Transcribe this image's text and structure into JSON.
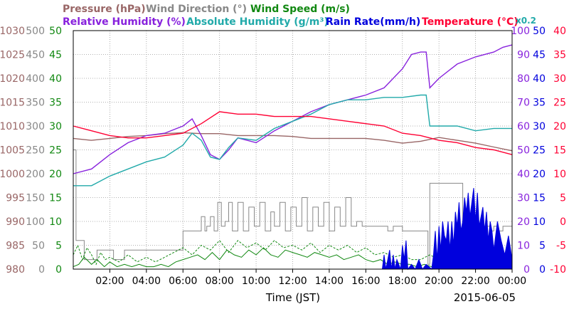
{
  "colors": {
    "pressure": "#996666",
    "wind_direction": "#888888",
    "wind_speed": "#118811",
    "relative_humidity": "#8822dd",
    "absolute_humidity": "#22aaaa",
    "rain_rate": "#0000dd",
    "temperature": "#ff0033",
    "grid": "#999999"
  },
  "chart_data": {
    "type": "line",
    "xlabel": "Time (JST)",
    "date": "2015-06-05",
    "x_ticks": [
      "02:00",
      "04:00",
      "06:00",
      "08:00",
      "10:00",
      "12:00",
      "14:00",
      "16:00",
      "18:00",
      "20:00",
      "22:00",
      "00:00"
    ],
    "x_range_hours": [
      0,
      24
    ],
    "axes": [
      {
        "id": "pressure",
        "label": "Pressure (hPa)",
        "range": [
          980,
          1030
        ],
        "ticks": [
          "1030",
          "1025",
          "1020",
          "1015",
          "1010",
          "1005",
          "1000",
          "995",
          "990",
          "985",
          "980"
        ]
      },
      {
        "id": "wind_direction",
        "label": "Wind Direction (°)",
        "range": [
          0,
          500
        ],
        "ticks": [
          "500",
          "450",
          "400",
          "350",
          "300",
          "250",
          "200",
          "150",
          "100",
          "50",
          "0"
        ]
      },
      {
        "id": "wind_speed",
        "label": "Wind Speed (m/s)",
        "range": [
          0,
          50
        ],
        "ticks": [
          "50",
          "45",
          "40",
          "35",
          "30",
          "25",
          "20",
          "15",
          "10",
          "5",
          "0"
        ]
      },
      {
        "id": "relative_humidity",
        "label": "Relative Humidity (%)",
        "range": [
          0,
          100
        ],
        "ticks": [
          "100",
          "90",
          "80",
          "70",
          "60",
          "50",
          "40",
          "30",
          "20",
          "10",
          "0"
        ]
      },
      {
        "id": "absolute_humidity",
        "label": "Absolute Humidity (g/m³)",
        "scale_note": "x0.2",
        "range": [
          0,
          50
        ]
      },
      {
        "id": "rain_rate",
        "label": "Rain Rate(mm/h)",
        "range": [
          0,
          50
        ],
        "ticks": [
          "50",
          "45",
          "40",
          "35",
          "30",
          "25",
          "20",
          "15",
          "10",
          "5",
          "0"
        ]
      },
      {
        "id": "temperature",
        "label": "Temperature (°C)",
        "range": [
          -10,
          40
        ],
        "ticks": [
          "40",
          "35",
          "30",
          "25",
          "20",
          "15",
          "10",
          "5",
          "0",
          "-5",
          "-10"
        ]
      }
    ],
    "series": [
      {
        "name": "Pressure (hPa)",
        "axis": "pressure",
        "x": [
          0,
          1,
          2,
          3,
          4,
          5,
          6,
          7,
          8,
          9,
          10,
          11,
          12,
          13,
          14,
          15,
          16,
          17,
          18,
          19,
          20,
          21,
          22,
          23,
          24
        ],
        "y": [
          1007.4,
          1007.0,
          1007.4,
          1007.8,
          1008.0,
          1008.4,
          1008.6,
          1008.4,
          1008.4,
          1008.0,
          1008.0,
          1008.0,
          1007.8,
          1007.4,
          1007.4,
          1007.4,
          1007.4,
          1007.0,
          1006.4,
          1006.8,
          1007.6,
          1007.0,
          1006.4,
          1005.6,
          1004.8
        ]
      },
      {
        "name": "Wind Direction (°)",
        "axis": "wind_direction",
        "x": [
          0,
          0.1,
          0.15,
          0.6,
          1.3,
          2.2,
          2.8,
          4,
          5,
          5.9,
          6.0,
          6.8,
          7.0,
          7.2,
          7.3,
          7.5,
          7.7,
          7.9,
          8.1,
          8.3,
          8.5,
          8.7,
          9.0,
          9.3,
          9.6,
          9.9,
          10.2,
          10.5,
          10.8,
          11.0,
          11.3,
          11.6,
          11.9,
          12.2,
          12.5,
          12.8,
          13.1,
          13.4,
          13.7,
          14.0,
          14.3,
          14.6,
          14.9,
          15.2,
          15.5,
          15.8,
          16.1,
          16.4,
          16.7,
          17.0,
          17.2,
          17.5,
          18.0,
          18.5,
          18.8,
          19.0,
          19.4,
          19.5,
          20.0,
          20.5,
          21.0,
          21.3,
          21.5,
          22.0,
          22.5,
          22.8,
          23.0,
          23.2,
          23.5,
          24.0
        ],
        "y": [
          250,
          250,
          60,
          20,
          40,
          20,
          40,
          40,
          40,
          40,
          80,
          80,
          110,
          80,
          90,
          110,
          80,
          140,
          90,
          100,
          140,
          80,
          140,
          80,
          130,
          90,
          140,
          80,
          120,
          90,
          140,
          80,
          130,
          90,
          150,
          80,
          130,
          90,
          140,
          80,
          130,
          90,
          150,
          90,
          100,
          90,
          90,
          90,
          90,
          90,
          80,
          90,
          80,
          80,
          80,
          80,
          10,
          180,
          180,
          180,
          180,
          100,
          80,
          90,
          90,
          80,
          90,
          80,
          90,
          90
        ]
      },
      {
        "name": "Wind Speed (m/s)",
        "axis": "wind_speed",
        "x": [
          0,
          0.3,
          0.6,
          1.0,
          1.3,
          1.7,
          2.0,
          2.4,
          2.8,
          3.2,
          3.6,
          4.0,
          4.4,
          4.8,
          5.2,
          5.6,
          6.0,
          6.4,
          6.8,
          7.2,
          7.6,
          8.0,
          8.4,
          8.8,
          9.2,
          9.6,
          10.0,
          10.4,
          10.8,
          11.2,
          11.6,
          12.0,
          12.4,
          12.8,
          13.2,
          13.6,
          14.0,
          14.4,
          14.8,
          15.2,
          15.6,
          16.0,
          16.4,
          16.8,
          17.2,
          17.6,
          18.0,
          18.4,
          18.8,
          19.2,
          19.6,
          20.0,
          20.5,
          21.0,
          21.5,
          22.0,
          22.5,
          23.0,
          23.5,
          24.0
        ],
        "y": [
          0.5,
          1.0,
          2.5,
          1.0,
          2.0,
          0.5,
          1.5,
          0.5,
          1.0,
          0.5,
          1.0,
          0.5,
          0.5,
          1.0,
          0.5,
          1.5,
          2.0,
          2.5,
          3.0,
          2.0,
          3.5,
          2.0,
          4.0,
          3.0,
          2.5,
          4.0,
          3.0,
          4.5,
          3.0,
          2.5,
          4.0,
          3.5,
          3.0,
          2.5,
          3.5,
          3.0,
          2.5,
          3.0,
          2.0,
          2.5,
          3.0,
          2.0,
          1.5,
          2.0,
          1.0,
          1.5,
          1.0,
          1.0,
          0.5,
          1.0,
          0.5,
          1.0,
          0.5,
          1.0,
          0.5,
          1.0,
          1.5,
          1.0,
          1.5,
          1.0
        ]
      },
      {
        "name": "Wind Speed (m/s)",
        "axis": "wind_speed",
        "style": "dashed",
        "x": [
          0,
          0.25,
          0.5,
          0.75,
          1.0,
          1.25,
          1.5,
          1.75,
          2.0,
          2.5,
          3.0,
          3.5,
          4.0,
          4.5,
          5.0,
          5.5,
          6.0,
          6.5,
          7.0,
          7.5,
          8.0,
          8.5,
          9.0,
          9.5,
          10.0,
          10.5,
          11.0,
          11.5,
          12.0,
          12.5,
          13.0,
          13.5,
          14.0,
          14.5,
          15.0,
          15.5,
          16.0,
          16.5,
          17.0,
          17.5,
          18.0,
          18.5,
          19.0,
          19.5,
          20.0,
          20.5,
          21.0,
          21.5,
          22.0,
          22.5,
          23.0,
          23.5,
          24.0
        ],
        "y": [
          3.0,
          5.0,
          2.0,
          4.5,
          3.0,
          1.0,
          3.5,
          2.0,
          2.5,
          1.5,
          3.0,
          1.5,
          2.5,
          1.5,
          2.5,
          3.5,
          4.5,
          3.0,
          5.0,
          4.0,
          6.0,
          3.5,
          6.0,
          4.5,
          5.5,
          4.0,
          6.0,
          4.5,
          5.0,
          4.0,
          5.5,
          3.5,
          5.0,
          4.0,
          5.0,
          3.5,
          4.5,
          3.0,
          3.5,
          2.5,
          3.0,
          2.0,
          2.0,
          3.0,
          2.0,
          1.5,
          2.5,
          1.5,
          2.0,
          2.5,
          3.0,
          2.0,
          2.5
        ]
      },
      {
        "name": "Relative Humidity (%)",
        "axis": "relative_humidity",
        "x": [
          0,
          1,
          2,
          3,
          4,
          5,
          6,
          6.5,
          7,
          7.5,
          8,
          8.5,
          9,
          10,
          11,
          12,
          13,
          14,
          15,
          16,
          17,
          18,
          18.5,
          19,
          19.3,
          19.5,
          20,
          21,
          22,
          23,
          23.5,
          24
        ],
        "y": [
          40,
          42,
          48,
          53,
          56,
          57,
          60,
          63,
          56,
          48,
          46,
          50,
          55,
          53,
          58,
          62,
          66,
          69,
          71,
          73,
          76,
          84,
          90,
          91,
          91,
          76,
          80,
          86,
          89,
          91,
          93,
          94
        ]
      },
      {
        "name": "Absolute Humidity (g/m³)",
        "axis": "absolute_humidity",
        "x": [
          0,
          1,
          2,
          3,
          4,
          5,
          6,
          6.5,
          7,
          7.5,
          8,
          8.5,
          9,
          10,
          11,
          12,
          13,
          14,
          15,
          16,
          17,
          18,
          19,
          19.3,
          19.5,
          20,
          21,
          22,
          23,
          24
        ],
        "y": [
          17.5,
          17.5,
          19.5,
          21,
          22.5,
          23.5,
          26,
          28.5,
          27,
          23.5,
          23,
          25.5,
          27.5,
          27,
          29.5,
          31,
          32.5,
          34.5,
          35.5,
          35.5,
          36,
          36,
          36.5,
          36.5,
          30,
          30,
          30,
          29,
          29.5,
          29.5
        ]
      },
      {
        "name": "Temperature (°C)",
        "axis": "temperature",
        "x": [
          0,
          1,
          2,
          3,
          4,
          5,
          6,
          7,
          8,
          9,
          10,
          11,
          12,
          13,
          14,
          15,
          16,
          17,
          18,
          19,
          20,
          21,
          22,
          23,
          24
        ],
        "y": [
          20,
          19,
          18,
          17.5,
          17.5,
          18,
          18.5,
          20.5,
          23,
          22.5,
          22.5,
          22,
          22,
          22,
          21.5,
          21,
          20.5,
          20,
          18.5,
          18,
          17,
          16.5,
          15.5,
          15,
          14
        ]
      },
      {
        "name": "Rain Rate(mm/h)",
        "axis": "rain_rate",
        "style": "filled",
        "x": [
          16.9,
          17.0,
          17.1,
          17.2,
          17.3,
          17.4,
          17.5,
          17.6,
          17.7,
          17.8,
          17.9,
          18.0,
          18.1,
          18.2,
          18.3,
          18.5,
          18.7,
          18.9,
          19.1,
          19.3,
          19.6,
          19.7,
          19.8,
          19.9,
          20.0,
          20.1,
          20.2,
          20.3,
          20.4,
          20.5,
          20.6,
          20.7,
          20.8,
          20.9,
          21.0,
          21.1,
          21.2,
          21.3,
          21.4,
          21.5,
          21.6,
          21.7,
          21.8,
          21.9,
          22.0,
          22.1,
          22.2,
          22.3,
          22.4,
          22.5,
          22.6,
          22.7,
          22.8,
          22.9,
          23.0,
          23.2,
          23.4,
          23.6,
          23.8,
          24.0
        ],
        "y": [
          0,
          3,
          0,
          2,
          4,
          0,
          3,
          0,
          2,
          1,
          0,
          5,
          2,
          6,
          0,
          1,
          0,
          2,
          0,
          1,
          0,
          3,
          8,
          2,
          9,
          4,
          10,
          7,
          6,
          10,
          4,
          10,
          5,
          12,
          9,
          14,
          8,
          10,
          15,
          12,
          16,
          11,
          14,
          17,
          10,
          16,
          9,
          11,
          13,
          8,
          12,
          6,
          10,
          8,
          4,
          10,
          6,
          3,
          7,
          2
        ]
      }
    ]
  }
}
